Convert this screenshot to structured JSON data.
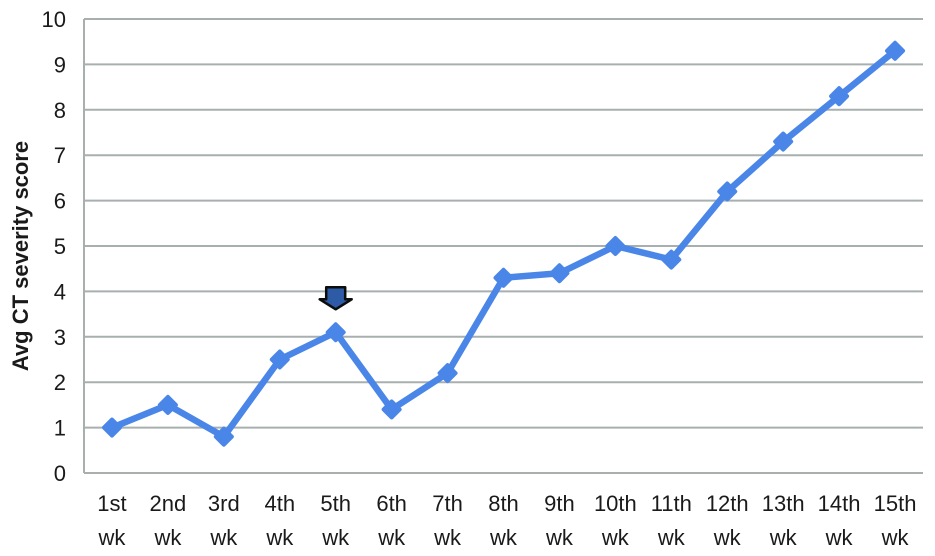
{
  "chart_data": {
    "type": "line",
    "title": "",
    "xlabel": "",
    "ylabel": "Avg CT severity score",
    "ylim": [
      0,
      10
    ],
    "yticks": [
      0,
      1,
      2,
      3,
      4,
      5,
      6,
      7,
      8,
      9,
      10
    ],
    "grid": "horizontal",
    "legend_position": "none",
    "categories": [
      "1st wk",
      "2nd wk",
      "3rd wk",
      "4th wk",
      "5th wk",
      "6th wk",
      "7th wk",
      "8th wk",
      "9th wk",
      "10th wk",
      "11th wk",
      "12th wk",
      "13th wk",
      "14th wk",
      "15th wk"
    ],
    "series": [
      {
        "name": "Avg CT severity score",
        "marker": "diamond",
        "values": [
          1.0,
          1.5,
          0.8,
          2.5,
          3.1,
          1.4,
          2.2,
          4.3,
          4.4,
          5.0,
          4.7,
          6.2,
          7.3,
          8.3,
          9.3
        ]
      }
    ],
    "annotation": {
      "type": "down-arrow",
      "category": "5th wk",
      "category_index": 4,
      "points_to_value": 3.1
    },
    "colors": {
      "line": "#4a86e8",
      "marker": "#4a86e8",
      "arrow_fill": "#2d5ba6",
      "arrow_stroke": "#0d0d0d",
      "gridline": "#a8afaf",
      "axis": "#a8afaf",
      "text": "#1a1a1a",
      "background": "#ffffff"
    }
  }
}
